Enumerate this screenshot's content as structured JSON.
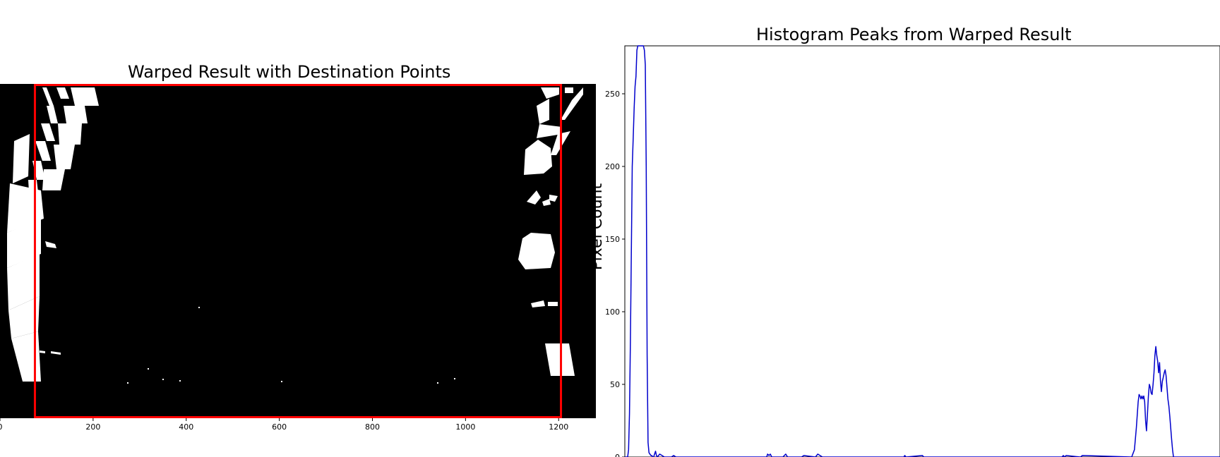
{
  "chart_data": [
    {
      "type": "image",
      "title": "Warped Result with Destination Points",
      "xticks": [
        0,
        200,
        400,
        600,
        800,
        1000,
        1200
      ],
      "xlim": [
        0,
        1280
      ],
      "ylim": [
        720,
        0
      ],
      "destination_rect": {
        "x0": 75,
        "x1": 1205,
        "y0": 0,
        "y1": 720,
        "color": "#ff0000"
      }
    },
    {
      "type": "line",
      "title": "Histogram Peaks from Warped Result",
      "ylabel": "Pixel Count",
      "xlim": [
        0,
        1280
      ],
      "ylim": [
        0,
        283
      ],
      "yticks": [
        0,
        50,
        100,
        150,
        200,
        250
      ],
      "series": [
        {
          "color": "#0000cc",
          "x": [
            0,
            6,
            8,
            10,
            12,
            14,
            16,
            18,
            20,
            22,
            24,
            26,
            28,
            30,
            32,
            34,
            36,
            38,
            40,
            42,
            44,
            46,
            48,
            50,
            52,
            54,
            56,
            58,
            60,
            62,
            64,
            66,
            68,
            70,
            75,
            80,
            85,
            90,
            95,
            100,
            105,
            110,
            120,
            140,
            200,
            250,
            305,
            307,
            310,
            313,
            316,
            340,
            346,
            350,
            380,
            385,
            410,
            415,
            425,
            600,
            602,
            605,
            640,
            643,
            940,
            943,
            946,
            949,
            980,
            984,
            1090,
            1096,
            1100,
            1104,
            1106,
            1108,
            1110,
            1112,
            1114,
            1116,
            1118,
            1120,
            1122,
            1124,
            1126,
            1128,
            1130,
            1132,
            1134,
            1136,
            1138,
            1140,
            1142,
            1144,
            1146,
            1148,
            1150,
            1152,
            1154,
            1156,
            1158,
            1160,
            1162,
            1164,
            1166,
            1168,
            1170,
            1172,
            1174,
            1176,
            1178,
            1180,
            1182,
            1184,
            1186,
            1188,
            1190,
            1192,
            1194,
            1196,
            1198,
            1200,
            1202,
            1204,
            1206,
            1208,
            1210,
            1212,
            1280
          ],
          "y": [
            0,
            0,
            5,
            30,
            80,
            140,
            200,
            220,
            240,
            255,
            262,
            280,
            283,
            283,
            283,
            283,
            283,
            283,
            283,
            280,
            270,
            200,
            70,
            10,
            3,
            2,
            1,
            1,
            0,
            0,
            2,
            4,
            1,
            0,
            2,
            1,
            0,
            0,
            0,
            0,
            1,
            0,
            0,
            0,
            0,
            0,
            0,
            2,
            1,
            2,
            0,
            0,
            2,
            0,
            0,
            1,
            0,
            2,
            0,
            0,
            1,
            0,
            1,
            0,
            0,
            1,
            0,
            1,
            0,
            1,
            0,
            5,
            20,
            38,
            43,
            42,
            40,
            42,
            40,
            42,
            38,
            25,
            18,
            30,
            42,
            50,
            48,
            44,
            43,
            50,
            58,
            70,
            76,
            70,
            66,
            58,
            65,
            52,
            45,
            52,
            55,
            58,
            60,
            56,
            48,
            40,
            35,
            28,
            20,
            12,
            5,
            0,
            0,
            0,
            0,
            0,
            0,
            0,
            0,
            0,
            0,
            0,
            0,
            0,
            0,
            0,
            0,
            0,
            0
          ]
        }
      ]
    }
  ]
}
